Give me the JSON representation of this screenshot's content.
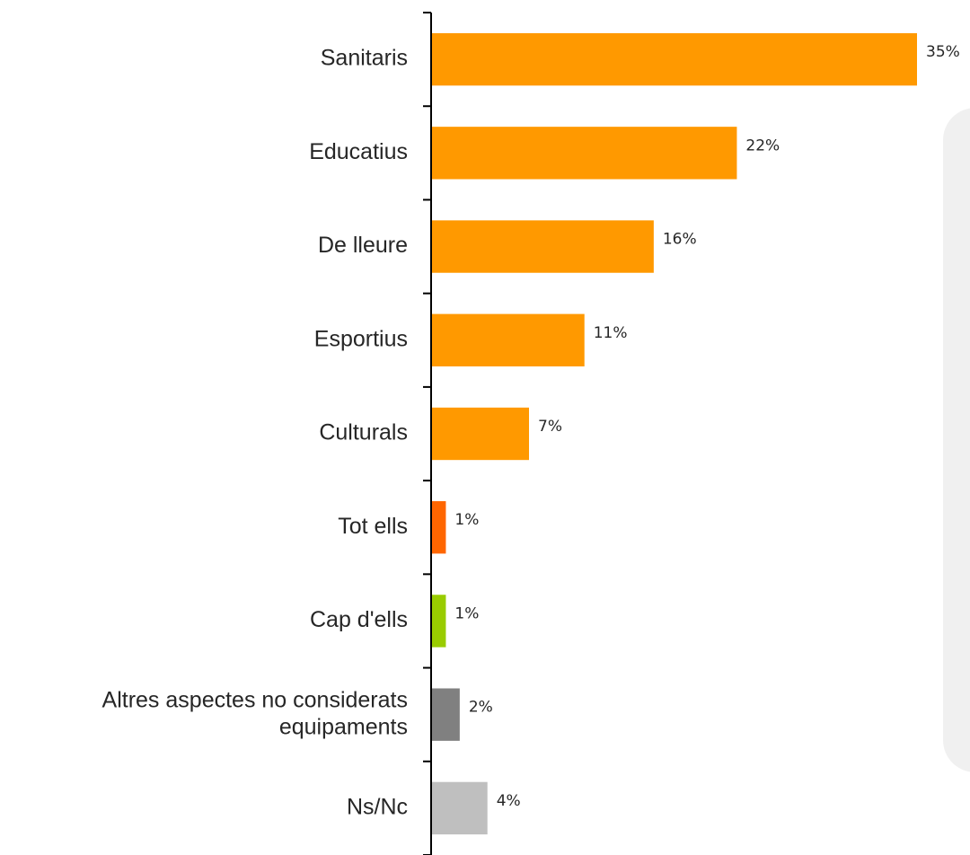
{
  "chart_data": {
    "type": "bar",
    "orientation": "horizontal",
    "categories": [
      [
        "Sanitaris"
      ],
      [
        "Educatius"
      ],
      [
        "De lleure"
      ],
      [
        "Esportius"
      ],
      [
        "Culturals"
      ],
      [
        "Tot ells"
      ],
      [
        "Cap d'ells"
      ],
      [
        "Altres aspectes no considerats",
        "equipaments"
      ],
      [
        "Ns/Nc"
      ]
    ],
    "values": [
      35,
      22,
      16,
      11,
      7,
      1,
      1,
      2,
      4
    ],
    "value_labels": [
      "35%",
      "22%",
      "16%",
      "11%",
      "7%",
      "1%",
      "1%",
      "2%",
      "4%"
    ],
    "colors": [
      "#FF9900",
      "#FF9900",
      "#FF9900",
      "#FF9900",
      "#FF9900",
      "#FF6600",
      "#99CC00",
      "#808080",
      "#BFBFBF"
    ],
    "title": "",
    "xlabel": "",
    "ylabel": "",
    "xlim": [
      0,
      35
    ],
    "grid": false,
    "legend": "none"
  }
}
